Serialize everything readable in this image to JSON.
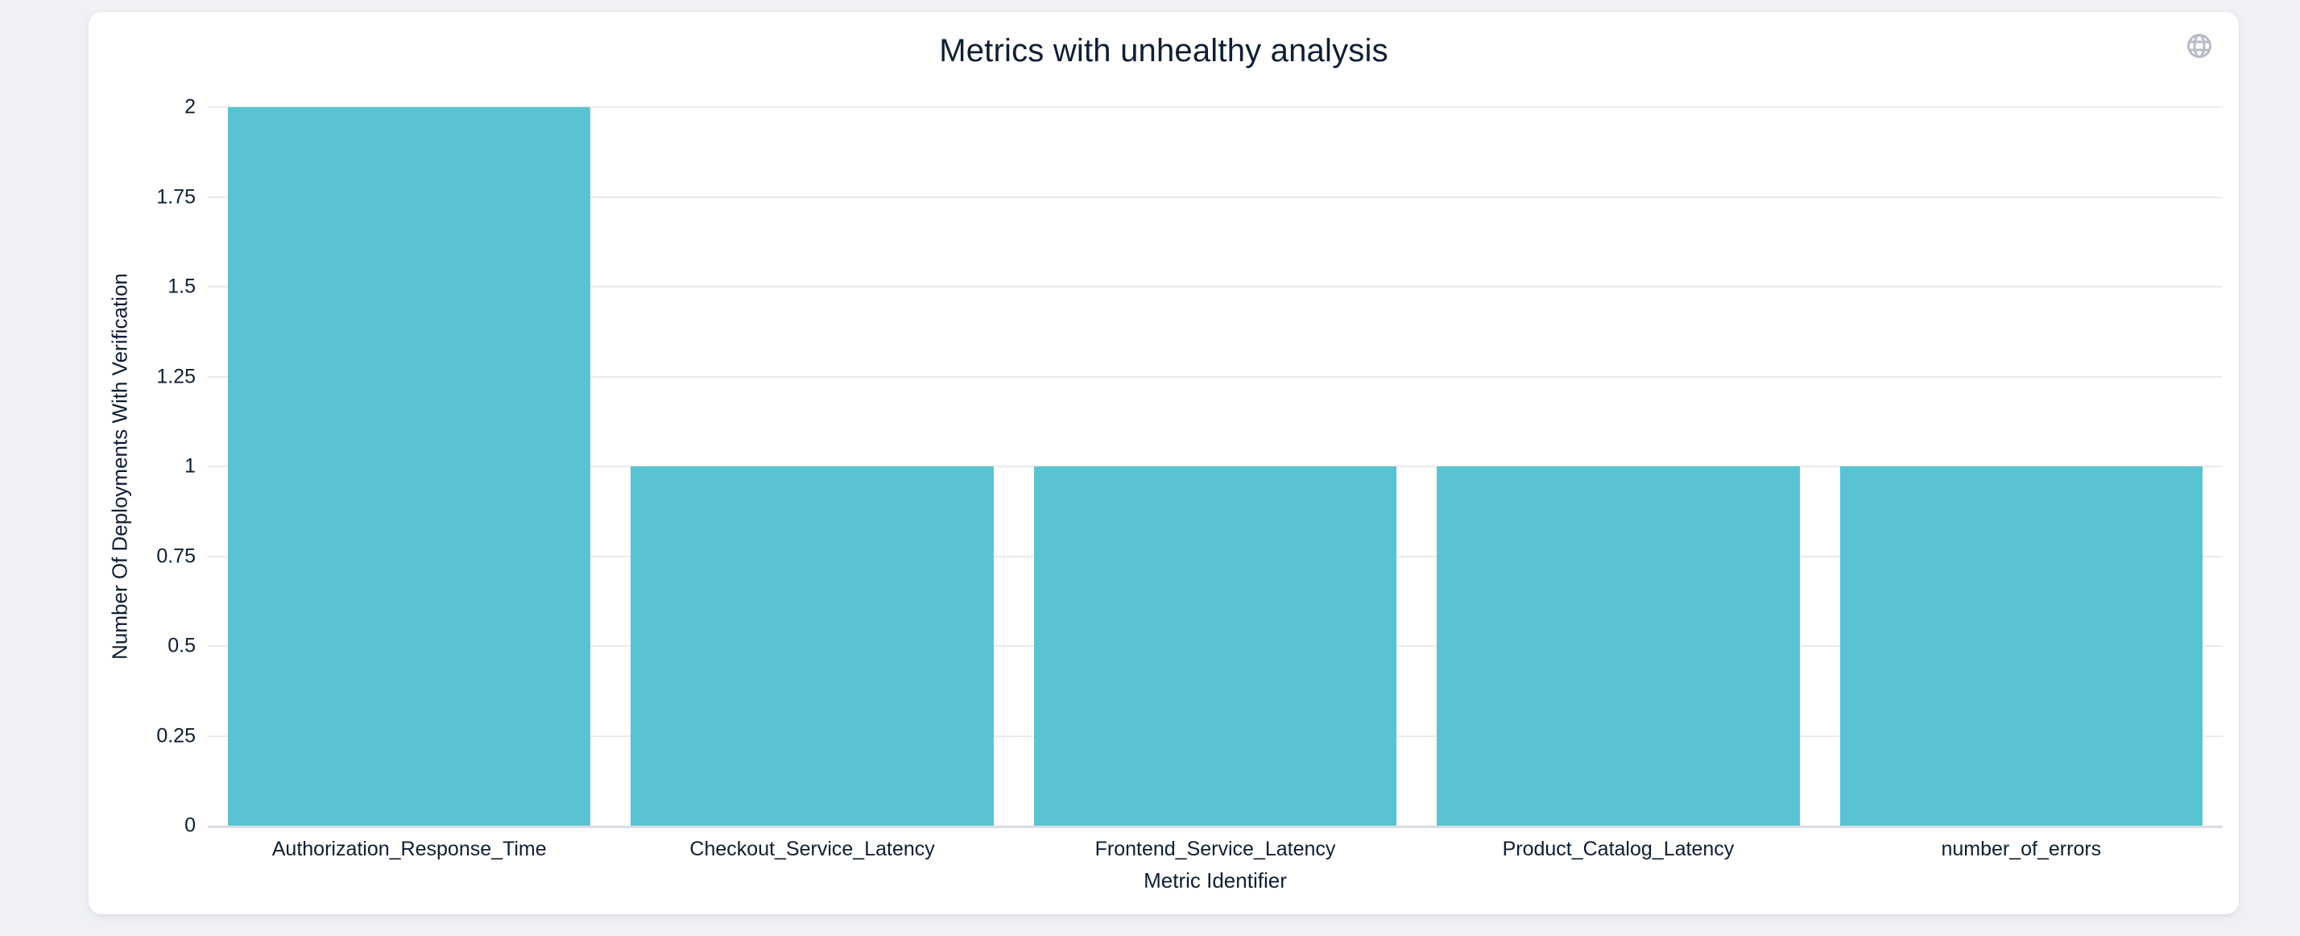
{
  "page": {
    "background_color": "#eff1f4"
  },
  "card": {
    "background_color": "#ffffff"
  },
  "toolbar": {
    "globe_icon": "globe-icon",
    "globe_icon_color": "#b5bcc6"
  },
  "chart_data": {
    "type": "bar",
    "title": "Metrics with unhealthy analysis",
    "xlabel": "Metric Identifier",
    "ylabel": "Number Of Deployments With Verification",
    "categories": [
      "Authorization_Response_Time",
      "Checkout_Service_Latency",
      "Frontend_Service_Latency",
      "Product_Catalog_Latency",
      "number_of_errors"
    ],
    "values": [
      2,
      1,
      1,
      1,
      1
    ],
    "ylim": [
      0,
      2
    ],
    "y_ticks": [
      "0",
      "0.25",
      "0.5",
      "0.75",
      "1",
      "1.25",
      "1.5",
      "1.75",
      "2"
    ],
    "grid": true,
    "legend": false,
    "bar_width_fraction": 0.9,
    "bar_color": "#5ac3d2",
    "text_color": "#0e1e33",
    "gridline_color": "#eaebed",
    "axis_line_color": "#dadde5"
  }
}
